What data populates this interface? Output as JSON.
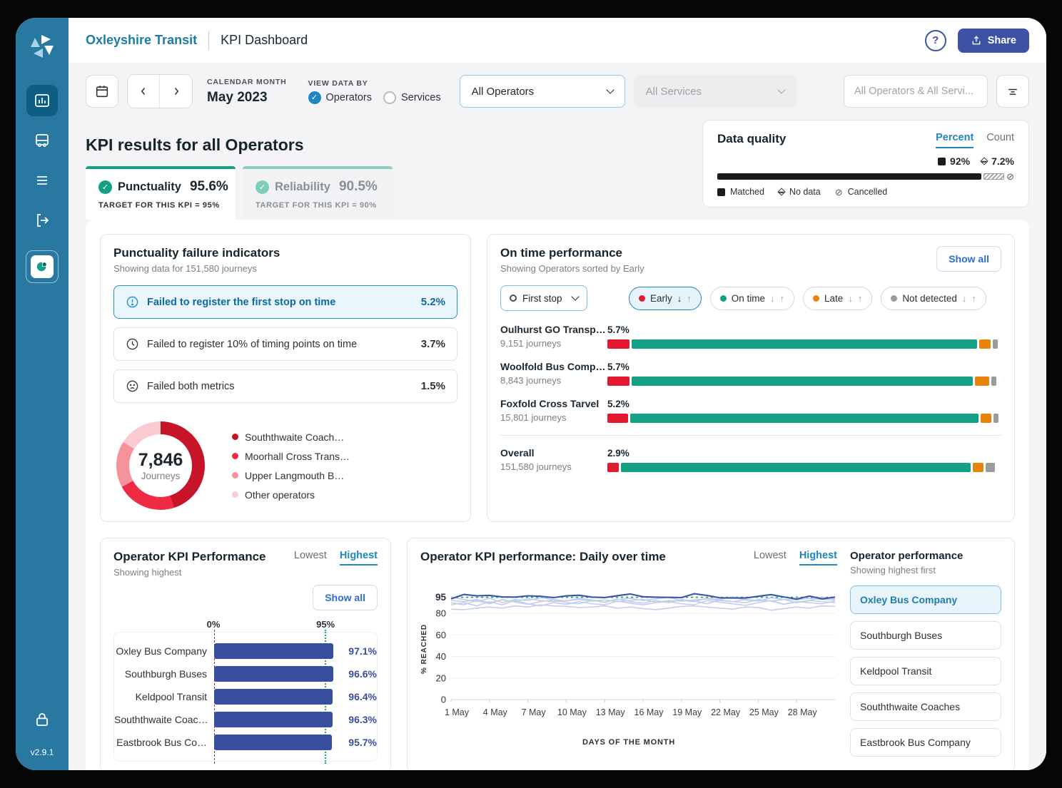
{
  "app": {
    "brand": "Oxleyshire Transit",
    "title": "KPI Dashboard",
    "share": "Share",
    "version": "v2.9.1"
  },
  "filters": {
    "calendar_month_label": "CALENDAR MONTH",
    "calendar_month_value": "May 2023",
    "view_by_label": "VIEW DATA BY",
    "view_by_options": [
      {
        "label": "Operators",
        "selected": true
      },
      {
        "label": "Services",
        "selected": false
      }
    ],
    "operators_select": "All Operators",
    "services_select": "All Services",
    "search_value": "All Operators & All Servi..."
  },
  "data_quality": {
    "title": "Data quality",
    "tabs": [
      {
        "label": "Percent",
        "active": true
      },
      {
        "label": "Count",
        "active": false
      }
    ],
    "matched_pct": "92%",
    "no_data_pct": "7.2%",
    "bar": {
      "matched": 92,
      "no_data": 7.2
    },
    "legend": [
      "Matched",
      "No data",
      "Cancelled"
    ]
  },
  "kpi": {
    "section_title": "KPI results for all Operators",
    "tabs": [
      {
        "label": "Punctuality",
        "value": "95.6%",
        "target": "TARGET FOR THIS KPI = 95%",
        "active": true
      },
      {
        "label": "Reliability",
        "value": "90.5%",
        "target": "TARGET FOR THIS KPI = 90%",
        "active": false
      }
    ]
  },
  "failure_panel": {
    "title": "Punctuality failure indicators",
    "subtitle": "Showing data for 151,580 journeys",
    "rows": [
      {
        "icon": "alert-circle",
        "label": "Failed to register the first stop on time",
        "value": "5.2%",
        "selected": true
      },
      {
        "icon": "clock",
        "label": "Failed to register 10% of timing points on time",
        "value": "3.7%",
        "selected": false
      },
      {
        "icon": "sad-face",
        "label": "Failed both metrics",
        "value": "1.5%",
        "selected": false
      }
    ],
    "donut": {
      "center_value": "7,846",
      "center_label": "Journeys",
      "segments": [
        {
          "label": "Souththwaite Coach…",
          "value": 45,
          "color": "#C81428"
        },
        {
          "label": "Moorhall Cross Trans…",
          "value": 22,
          "color": "#EE2B43"
        },
        {
          "label": "Upper Langmouth B…",
          "value": 17,
          "color": "#F4939C"
        },
        {
          "label": "Other operators",
          "value": 16,
          "color": "#F9CBD0"
        }
      ]
    }
  },
  "on_time": {
    "title": "On time performance",
    "subtitle": "Showing Operators sorted by Early",
    "show_all": "Show all",
    "stop_select": "First stop",
    "chips": [
      {
        "label": "Early",
        "color": "#E4182F",
        "selected": true
      },
      {
        "label": "On time",
        "color": "#14A085",
        "selected": false
      },
      {
        "label": "Late",
        "color": "#E8830C",
        "selected": false
      },
      {
        "label": "Not detected",
        "color": "#9B9B9B",
        "selected": false
      }
    ],
    "segment_colors": [
      "#E4182F",
      "#14A085",
      "#E8830C",
      "#9B9B9B"
    ],
    "rows": [
      {
        "name": "Oulhurst GO Transp…",
        "journeys": "9,151 journeys",
        "early_label": "5.7%",
        "early": 5.7,
        "on_time": 87.6,
        "late": 2.9,
        "not_detected": 1.2
      },
      {
        "name": "Woolfold Bus Comp…",
        "journeys": "8,843 journeys",
        "early_label": "5.7%",
        "early": 5.7,
        "on_time": 86.6,
        "late": 3.6,
        "not_detected": 1.2
      },
      {
        "name": "Foxfold Cross Tarvel",
        "journeys": "15,801 journeys",
        "early_label": "5.2%",
        "early": 5.2,
        "on_time": 88.4,
        "late": 2.7,
        "not_detected": 1.3
      },
      {
        "name": "Overall",
        "journeys": "151,580 journeys",
        "early_label": "2.9%",
        "early": 2.9,
        "on_time": 88.8,
        "late": 2.7,
        "not_detected": 2.3
      }
    ]
  },
  "operator_kpi": {
    "title": "Operator KPI Performance",
    "subtitle": "Showing highest",
    "toggle": [
      {
        "label": "Lowest",
        "active": false
      },
      {
        "label": "Highest",
        "active": true
      }
    ],
    "show_all": "Show all",
    "axis": {
      "min_label": "0%",
      "target_label": "95%",
      "target": 95,
      "max": 104
    },
    "chart_data": {
      "type": "bar",
      "categories": [
        "Oxley Bus Company",
        "Southburgh Buses",
        "Keldpool Transit",
        "Souththwaite Coac…",
        "Eastbrook Bus Co…"
      ],
      "values": [
        97.1,
        96.6,
        96.4,
        96.3,
        95.7
      ],
      "value_labels": [
        "97.1%",
        "96.6%",
        "96.4%",
        "96.3%",
        "95.7%"
      ]
    }
  },
  "daily": {
    "title": "Operator KPI performance: Daily over time",
    "toggle": [
      {
        "label": "Lowest",
        "active": false
      },
      {
        "label": "Highest",
        "active": true
      }
    ],
    "list_title": "Operator performance",
    "list_subtitle": "Showing highest first",
    "operators": [
      {
        "name": "Oxley Bus Company",
        "selected": true
      },
      {
        "name": "Southburgh Buses",
        "selected": false
      },
      {
        "name": "Keldpool Transit",
        "selected": false
      },
      {
        "name": "Souththwaite Coaches",
        "selected": false
      },
      {
        "name": "Eastbrook Bus Company",
        "selected": false
      }
    ],
    "chart_data": {
      "type": "line",
      "xlabel": "DAYS OF THE MONTH",
      "ylabel": "% REACHED",
      "x_ticks": [
        "1 May",
        "4 May",
        "7 May",
        "10 May",
        "13 May",
        "16 May",
        "19 May",
        "22 May",
        "25 May",
        "28 May"
      ],
      "tick_days": [
        1,
        4,
        7,
        10,
        13,
        16,
        19,
        22,
        25,
        28
      ],
      "y_ticks": [
        95,
        80,
        60,
        40,
        20,
        0
      ],
      "ylim": [
        0,
        102
      ],
      "target": 95,
      "days": 31,
      "series": [
        {
          "name": "background-1",
          "emphasis": false,
          "values": [
            92,
            91,
            93,
            90,
            92.5,
            91,
            93.5,
            92,
            91,
            92,
            93,
            91.5,
            92.5,
            91,
            92,
            93,
            90.5,
            92,
            91.5,
            92.5,
            93.5,
            92,
            91,
            93,
            92,
            91.5,
            93,
            92.5,
            94,
            93,
            92.5
          ]
        },
        {
          "name": "background-2",
          "emphasis": false,
          "values": [
            84,
            83.5,
            85,
            86,
            85,
            87,
            86,
            88,
            87,
            86.5,
            85.5,
            86,
            87,
            85,
            86,
            84.5,
            83.5,
            85,
            86.5,
            87,
            86,
            85,
            84,
            86,
            85.5,
            83,
            84.5,
            86,
            85,
            87,
            86.5
          ]
        },
        {
          "name": "background-3",
          "emphasis": false,
          "values": [
            88,
            90,
            87,
            91,
            88,
            92,
            89,
            87,
            90,
            88.5,
            91,
            89,
            88,
            91.5,
            89.5,
            88,
            90,
            91,
            89,
            88,
            92,
            90.5,
            89,
            87.5,
            90,
            92,
            88.5,
            91,
            90,
            89,
            91.5
          ]
        },
        {
          "name": "background-4",
          "emphasis": false,
          "values": [
            95,
            93,
            91,
            94,
            90,
            93,
            92,
            94.5,
            93,
            91.5,
            94,
            92.5,
            90.5,
            93,
            94,
            92,
            93.5,
            95,
            92,
            91,
            94,
            93,
            95.5,
            92.5,
            91.5,
            94.5,
            93,
            90,
            92,
            95,
            93.5
          ]
        },
        {
          "name": "background-5",
          "emphasis": false,
          "values": [
            90,
            88,
            92,
            89,
            93,
            90.5,
            88.5,
            91,
            92.5,
            90,
            89,
            92,
            90.5,
            93.5,
            91,
            89.5,
            92,
            90,
            93,
            91.5,
            89,
            92.5,
            91,
            90,
            93,
            91.5,
            88.5,
            90.5,
            92,
            91,
            90
          ]
        },
        {
          "name": "Oxley Bus Company",
          "emphasis": true,
          "values": [
            93.5,
            97.6,
            96.4,
            96.8,
            95.3,
            95.2,
            96.4,
            95.9,
            94.7,
            96.3,
            96.9,
            95.2,
            94.8,
            96.5,
            98.1,
            95.5,
            95.1,
            94.9,
            94.7,
            98.3,
            96.7,
            94.5,
            94.3,
            94.3,
            95.9,
            97.5,
            95.3,
            93.3,
            96.1,
            93.5,
            95.2
          ]
        }
      ]
    }
  }
}
